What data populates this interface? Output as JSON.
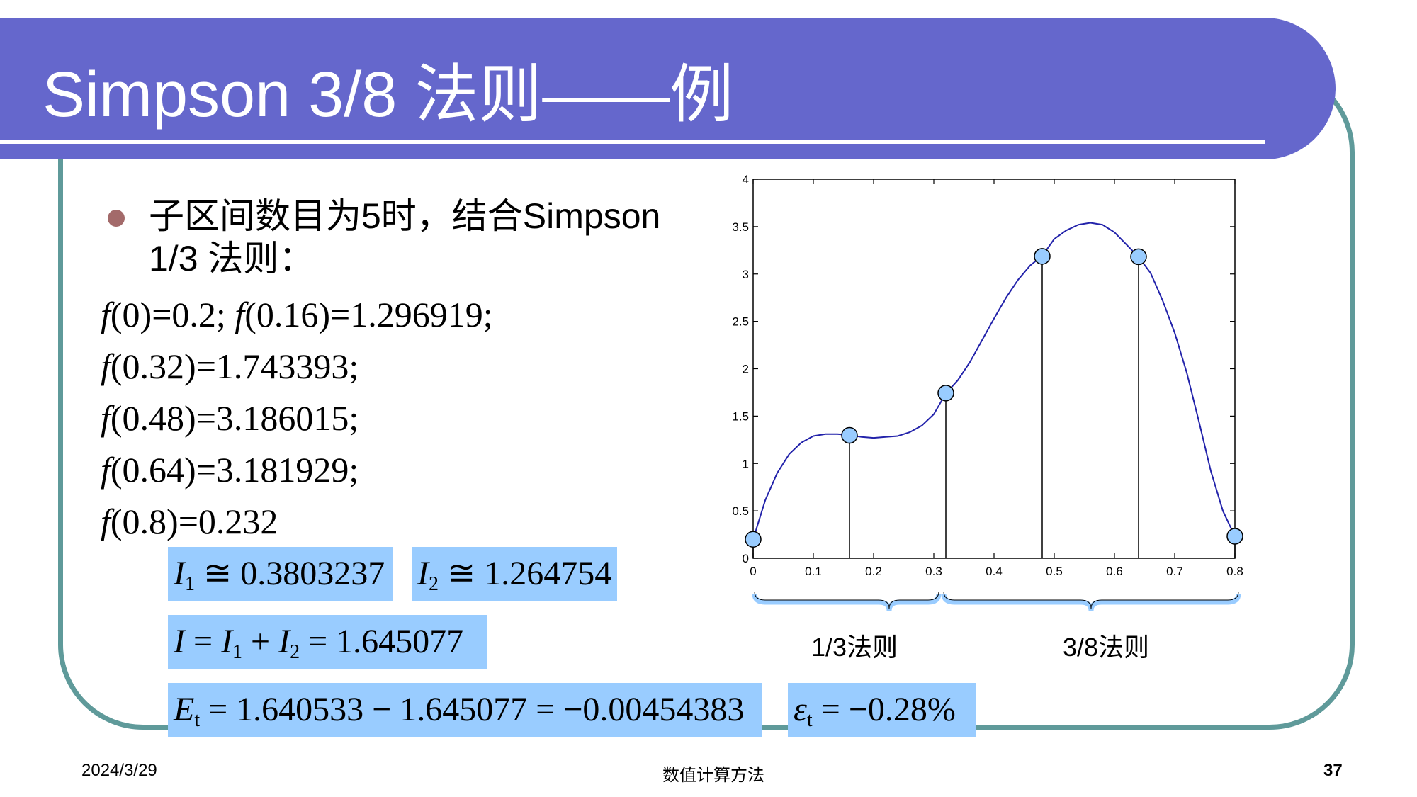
{
  "slide": {
    "title": "Simpson 3/8 法则——例",
    "bullet_line1": "子区间数目为5时，结合Simpson",
    "bullet_line2": "1/3 法则：",
    "function_lines": [
      {
        "f": "f",
        "rest": "(0)=0.2; ",
        "f2": "f",
        "rest2": "(0.16)=1.296919;"
      },
      {
        "f": "f",
        "rest": "(0.32)=1.743393;"
      },
      {
        "f": "f",
        "rest": "(0.48)=3.186015;"
      },
      {
        "f": "f",
        "rest": "(0.64)=3.181929;"
      },
      {
        "f": "f",
        "rest": "(0.8)=0.232"
      }
    ],
    "boxes": {
      "i1": {
        "var": "I",
        "sub": "1",
        "rest": " ≅ 0.3803237"
      },
      "i2": {
        "var": "I",
        "sub": "2",
        "rest": " ≅ 1.264754"
      },
      "i_total": {
        "var": "I",
        "eq": " = ",
        "var1": "I",
        "sub1": "1",
        "plus": " + ",
        "var2": "I",
        "sub2": "2",
        "rest": " = 1.645077"
      },
      "et": {
        "var": "E",
        "sub": "t",
        "rest": " = 1.640533 − 1.645077 = −0.00454383"
      },
      "epsilon": {
        "var": "ε",
        "sub": "t",
        "rest": " = −0.28%"
      }
    },
    "brace_labels": {
      "left": "1/3法则",
      "right": "3/8法则"
    },
    "footer": {
      "date": "2024/3/29",
      "course": "数值计算方法",
      "page": "37"
    }
  },
  "chart_data": {
    "type": "line",
    "xlim": [
      0,
      0.8
    ],
    "ylim": [
      0,
      4
    ],
    "x_ticks": [
      "0",
      "0.1",
      "0.2",
      "0.3",
      "0.4",
      "0.5",
      "0.6",
      "0.7",
      "0.8"
    ],
    "y_ticks": [
      "0",
      "0.5",
      "1",
      "1.5",
      "2",
      "2.5",
      "3",
      "3.5",
      "4"
    ],
    "curve_x": [
      0,
      0.02,
      0.04,
      0.06,
      0.08,
      0.1,
      0.12,
      0.14,
      0.16,
      0.18,
      0.2,
      0.22,
      0.24,
      0.26,
      0.28,
      0.3,
      0.32,
      0.34,
      0.36,
      0.38,
      0.4,
      0.42,
      0.44,
      0.46,
      0.48,
      0.5,
      0.52,
      0.54,
      0.56,
      0.58,
      0.6,
      0.62,
      0.64,
      0.66,
      0.68,
      0.7,
      0.72,
      0.74,
      0.76,
      0.78,
      0.8
    ],
    "curve_y": [
      0.2,
      0.61,
      0.9,
      1.1,
      1.22,
      1.29,
      1.31,
      1.31,
      1.3,
      1.28,
      1.27,
      1.28,
      1.29,
      1.33,
      1.4,
      1.52,
      1.74,
      1.88,
      2.07,
      2.3,
      2.53,
      2.75,
      2.94,
      3.09,
      3.19,
      3.37,
      3.46,
      3.52,
      3.54,
      3.52,
      3.44,
      3.31,
      3.18,
      3.01,
      2.72,
      2.38,
      1.96,
      1.45,
      0.92,
      0.5,
      0.23
    ],
    "points_x": [
      0,
      0.16,
      0.32,
      0.48,
      0.64,
      0.8
    ],
    "points_y": [
      0.2,
      1.296919,
      1.743393,
      3.186015,
      3.181929,
      0.232
    ],
    "grid": false,
    "line_color": "#2222aa",
    "point_color": "#99ccff",
    "brace_color": "#99ccff"
  }
}
